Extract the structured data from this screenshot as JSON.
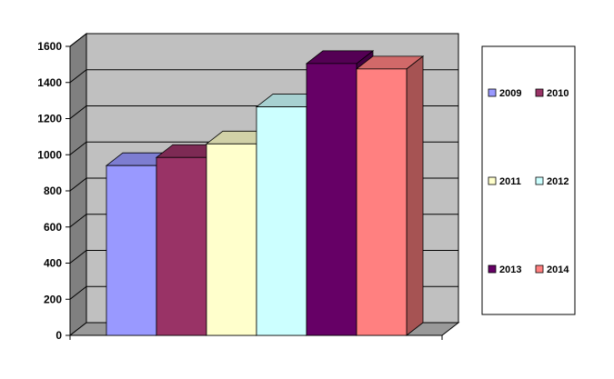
{
  "chart_data": {
    "type": "bar",
    "style": "3d-clustered-column",
    "title": "",
    "xlabel": "",
    "ylabel": "",
    "ylim": [
      0,
      1600
    ],
    "yticks": [
      0,
      200,
      400,
      600,
      800,
      1000,
      1200,
      1400,
      1600
    ],
    "grid": true,
    "legend_position": "right",
    "categories": [
      ""
    ],
    "series": [
      {
        "name": "2009",
        "values": [
          940
        ],
        "color": "#9999ff"
      },
      {
        "name": "2010",
        "values": [
          985
        ],
        "color": "#993366"
      },
      {
        "name": "2011",
        "values": [
          1060
        ],
        "color": "#ffffcc"
      },
      {
        "name": "2012",
        "values": [
          1265
        ],
        "color": "#ccffff"
      },
      {
        "name": "2013",
        "values": [
          1505
        ],
        "color": "#660066"
      },
      {
        "name": "2014",
        "values": [
          1475
        ],
        "color": "#ff8080"
      }
    ],
    "colors": {
      "wall": "#c0c0c0",
      "side_wall": "#808080",
      "floor": "#999999",
      "gridline": "#000000"
    }
  }
}
